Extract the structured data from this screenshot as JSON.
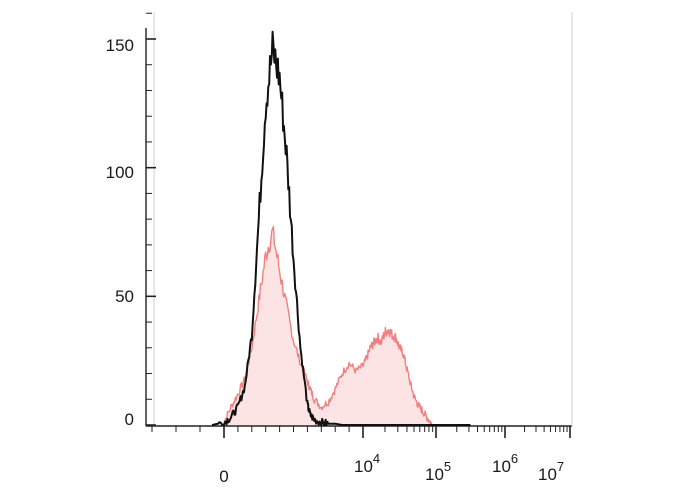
{
  "chart_data": {
    "type": "area",
    "title": "",
    "xlabel": "",
    "ylabel": "",
    "x_scale": "biexponential",
    "x_tick_labels": [
      {
        "base": "0",
        "exp": ""
      },
      {
        "base": "10",
        "exp": "4"
      },
      {
        "base": "10",
        "exp": "5"
      },
      {
        "base": "10",
        "exp": "6"
      },
      {
        "base": "10",
        "exp": "7"
      }
    ],
    "ylim": [
      0,
      150
    ],
    "y_ticks": [
      0,
      50,
      100,
      150
    ],
    "y_tick_labels": [
      "0",
      "50",
      "100",
      "150"
    ],
    "grid": false,
    "legend": "none",
    "series": [
      {
        "style": "filled",
        "color": "#f08080",
        "fill": "#fde4e4",
        "x": [
          -0.05,
          0.0,
          0.05,
          0.1,
          0.15,
          0.2,
          0.25,
          0.3,
          0.35,
          0.4,
          0.45,
          0.5,
          0.55,
          0.6,
          0.62,
          0.65,
          0.7,
          0.75,
          0.8,
          0.85,
          0.9,
          0.95,
          1.0,
          1.05,
          1.1,
          1.15,
          1.2,
          1.25,
          1.3,
          1.35,
          1.4,
          1.45,
          1.5,
          1.55,
          1.6,
          1.65,
          1.7,
          1.75,
          1.8,
          1.85,
          1.9,
          1.95,
          2.0,
          2.05,
          2.1,
          2.15,
          2.2,
          2.25,
          2.3,
          2.35,
          2.4,
          2.5
        ],
        "y": [
          0,
          1,
          7,
          12,
          18,
          30,
          48,
          66,
          75,
          60,
          46,
          33,
          24,
          17,
          14,
          10,
          7,
          9,
          14,
          20,
          24,
          21,
          23,
          26,
          30,
          32,
          34,
          32,
          36,
          37,
          35,
          34,
          30,
          28,
          22,
          16,
          11,
          8,
          6,
          4,
          2,
          0,
          0,
          0,
          0,
          0,
          0,
          0,
          0,
          0,
          0,
          0
        ]
      },
      {
        "style": "line",
        "color": "#111111",
        "x": [
          -0.05,
          0.0,
          0.05,
          0.1,
          0.15,
          0.2,
          0.25,
          0.3,
          0.35,
          0.4,
          0.45,
          0.5,
          0.55,
          0.6,
          0.62,
          0.65,
          0.7,
          0.75,
          0.8,
          0.85,
          0.9,
          0.95,
          1.0,
          1.05,
          1.1,
          1.15,
          1.2,
          1.25,
          1.3,
          1.35,
          1.4,
          1.45,
          1.5,
          1.55,
          1.6,
          1.65,
          1.7,
          1.75,
          1.8,
          1.85,
          1.9,
          1.95,
          2.0,
          2.05,
          2.1,
          2.15,
          2.2,
          2.25,
          2.3,
          2.35,
          2.4,
          2.5
        ],
        "y": [
          0,
          1,
          3,
          7,
          15,
          35,
          80,
          125,
          146,
          135,
          105,
          65,
          30,
          8,
          4,
          2,
          1,
          0.5,
          0.5,
          0,
          0,
          0,
          0,
          0,
          0,
          0,
          0,
          0,
          0,
          0,
          0,
          0,
          0,
          0,
          0,
          0,
          0,
          0,
          0,
          0,
          0,
          0,
          0,
          0,
          0,
          0,
          0,
          0,
          0,
          0,
          0,
          0
        ]
      }
    ]
  }
}
